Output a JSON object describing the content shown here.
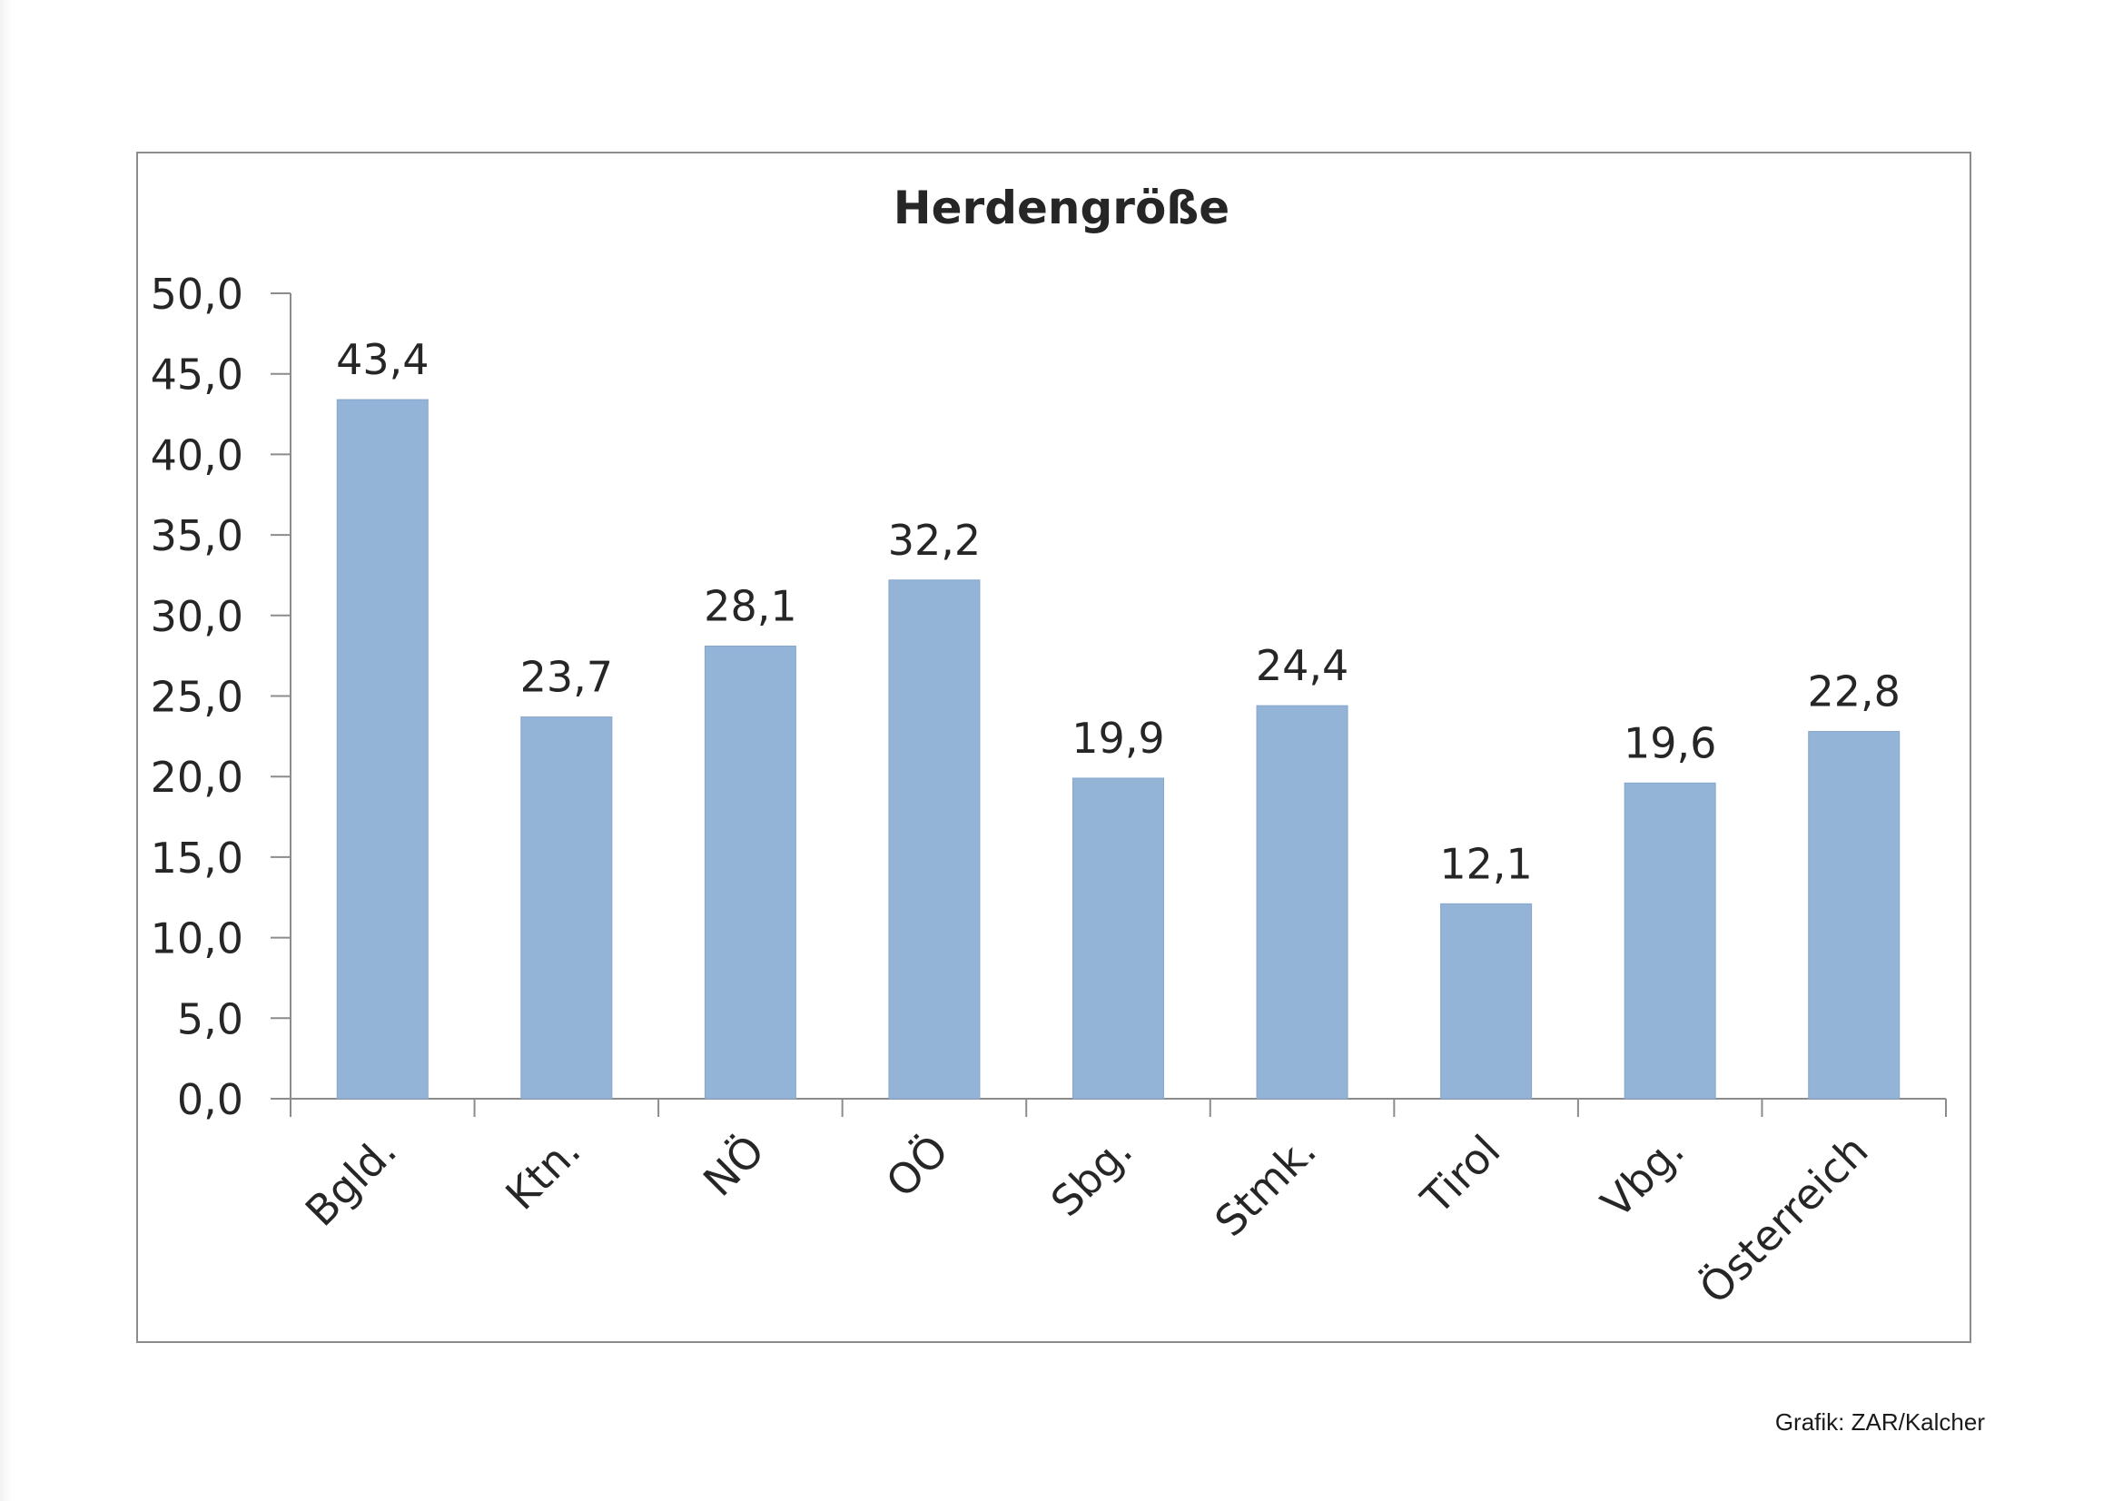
{
  "chart_data": {
    "type": "bar",
    "title": "Herdengröße",
    "xlabel": "",
    "ylabel": "",
    "categories": [
      "Bgld.",
      "Ktn.",
      "NÖ",
      "OÖ",
      "Sbg.",
      "Stmk.",
      "Tirol",
      "Vbg.",
      "Österreich"
    ],
    "values": [
      43.4,
      23.7,
      28.1,
      32.2,
      19.9,
      24.4,
      12.1,
      19.6,
      22.8
    ],
    "value_labels": [
      "43,4",
      "23,7",
      "28,1",
      "32,2",
      "19,9",
      "24,4",
      "12,1",
      "19,6",
      "22,8"
    ],
    "ylim": [
      0,
      50
    ],
    "yticks": [
      "0,0",
      "5,0",
      "10,0",
      "15,0",
      "20,0",
      "25,0",
      "30,0",
      "35,0",
      "40,0",
      "45,0",
      "50,0"
    ],
    "grid": false,
    "legend": "none",
    "bar_color": "#93b3d7"
  },
  "credit": "Grafik: ZAR/Kalcher"
}
